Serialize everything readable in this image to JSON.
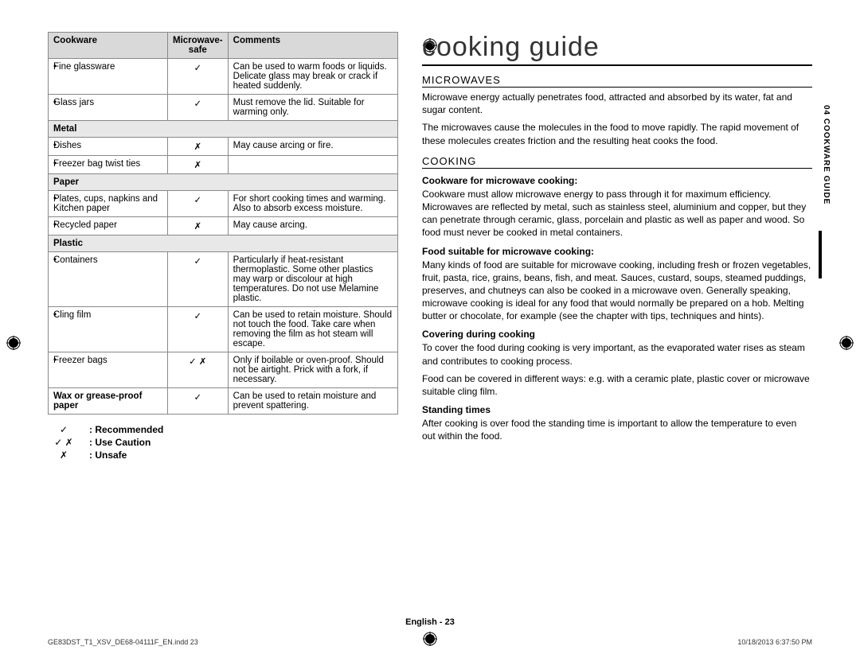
{
  "title": "cooking guide",
  "table": {
    "headers": [
      "Cookware",
      "Microwave-safe",
      "Comments"
    ],
    "rows": [
      {
        "type": "item",
        "name": "Fine glassware",
        "safe": "✓",
        "comment": "Can be used to warm foods or liquids. Delicate glass may break or crack if heated suddenly."
      },
      {
        "type": "item",
        "name": "Glass jars",
        "safe": "✓",
        "comment": "Must remove the lid. Suitable for warming only."
      },
      {
        "type": "cat",
        "name": "Metal"
      },
      {
        "type": "item",
        "name": "Dishes",
        "safe": "✗",
        "comment": "May cause arcing or fire."
      },
      {
        "type": "item",
        "name": "Freezer bag twist ties",
        "safe": "✗",
        "comment": ""
      },
      {
        "type": "cat",
        "name": "Paper"
      },
      {
        "type": "item",
        "name": "Plates, cups, napkins and Kitchen paper",
        "safe": "✓",
        "comment": "For short cooking times and warming. Also to absorb excess moisture."
      },
      {
        "type": "item",
        "name": "Recycled paper",
        "safe": "✗",
        "comment": "May cause arcing."
      },
      {
        "type": "cat",
        "name": "Plastic"
      },
      {
        "type": "item",
        "name": "Containers",
        "safe": "✓",
        "comment": "Particularly if heat-resistant thermoplastic. Some other plastics may warp or discolour at high temperatures. Do not use Melamine plastic."
      },
      {
        "type": "item",
        "name": "Cling film",
        "safe": "✓",
        "comment": "Can be used to retain moisture. Should not touch the food. Take care when removing the film as hot steam will escape."
      },
      {
        "type": "item",
        "name": "Freezer bags",
        "safe": "✓ ✗",
        "comment": "Only if boilable or oven-proof. Should not be airtight. Prick with a fork, if necessary."
      },
      {
        "type": "final",
        "name": "Wax or grease-proof paper",
        "safe": "✓",
        "comment": "Can be used to retain moisture and prevent spattering."
      }
    ]
  },
  "legend": [
    {
      "sym": "✓",
      "label": ": Recommended"
    },
    {
      "sym": "✓ ✗",
      "label": ": Use Caution"
    },
    {
      "sym": "✗",
      "label": ": Unsafe"
    }
  ],
  "sections": {
    "microwaves": {
      "heading": "MICROWAVES",
      "paras": [
        "Microwave energy actually penetrates food, attracted and absorbed by its water, fat and sugar content.",
        "The microwaves cause the molecules in the food to move rapidly. The rapid movement of these molecules creates friction and the resulting heat cooks the food."
      ]
    },
    "cooking": {
      "heading": "COOKING",
      "items": [
        {
          "sub": "Cookware for microwave cooking:",
          "text": "Cookware must allow microwave energy to pass through it for maximum efficiency. Microwaves are reflected by metal, such as stainless steel, aluminium and copper, but they can penetrate through ceramic, glass, porcelain and plastic as well as paper and wood. So food must never be cooked in metal containers."
        },
        {
          "sub": "Food suitable for microwave cooking:",
          "text": "Many kinds of food are suitable for microwave cooking, including fresh or frozen vegetables, fruit, pasta, rice, grains, beans, fish, and meat. Sauces, custard, soups, steamed puddings, preserves, and chutneys can also be cooked in a microwave oven. Generally speaking, microwave cooking is ideal for any food that would normally be prepared on a hob. Melting butter or chocolate, for example (see the chapter with tips, techniques and hints)."
        },
        {
          "sub": "Covering during cooking",
          "text": "To cover the food during cooking is very important, as the evaporated water rises as steam and contributes to cooking process.\nFood can be covered in different ways: e.g. with a ceramic plate, plastic cover or microwave suitable cling film."
        },
        {
          "sub": "Standing times",
          "text": "After cooking is over food the standing time is important to allow the temperature to even out within the food."
        }
      ]
    }
  },
  "sidetab": "04  COOKWARE GUIDE",
  "footer": {
    "center": "English - 23",
    "left": "GE83DST_T1_XSV_DE68-04111F_EN.indd   23",
    "right": "10/18/2013   6:37:50 PM"
  }
}
